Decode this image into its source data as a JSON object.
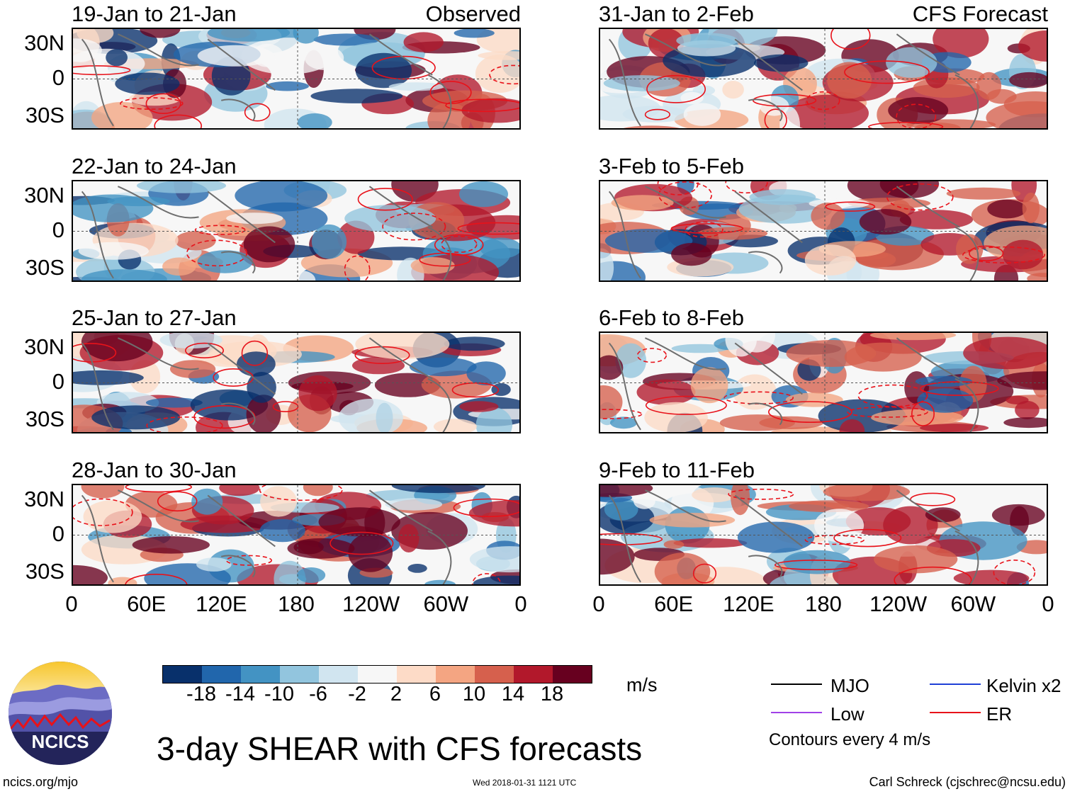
{
  "title": "3-day SHEAR with CFS forecasts",
  "units": "m/s",
  "site": "ncics.org/mjo",
  "timestamp": "Wed 2018-01-31 1121 UTC",
  "author": "Carl Schreck (cjschrec@ncsu.edu)",
  "logo_text": "NCICS",
  "columns": {
    "left_label": "Observed",
    "right_label": "CFS Forecast"
  },
  "lat_labels": [
    "30N",
    "0",
    "30S"
  ],
  "lon_labels": [
    "0",
    "60E",
    "120E",
    "180",
    "120W",
    "60W",
    "0"
  ],
  "colorbar": {
    "ticks": [
      "-18",
      "-14",
      "-10",
      "-6",
      "-2",
      "2",
      "6",
      "10",
      "14",
      "18"
    ],
    "colors": [
      "#08306b",
      "#2166ac",
      "#4393c3",
      "#92c5de",
      "#d1e5f0",
      "#f7f7f7",
      "#fddbc7",
      "#f4a582",
      "#d6604d",
      "#b2182b",
      "#67001f"
    ]
  },
  "legend": {
    "items": [
      {
        "label": "MJO",
        "color": "#000000"
      },
      {
        "label": "Kelvin x2",
        "color": "#1f3fd6"
      },
      {
        "label": "Low",
        "color": "#a040e8"
      },
      {
        "label": "ER",
        "color": "#e8121a"
      }
    ],
    "contour_note": "Contours every 4 m/s"
  },
  "chart_data": {
    "type": "heatmap",
    "variable": "3-day vertical wind shear anomaly",
    "units": "m/s",
    "levels": [
      -18,
      -14,
      -10,
      -6,
      -2,
      2,
      6,
      10,
      14,
      18
    ],
    "lon_ticks": [
      "0",
      "60E",
      "120E",
      "180",
      "120W",
      "60W",
      "0"
    ],
    "lat_ticks": [
      "30N",
      "0",
      "30S"
    ],
    "contour_interval": "4 m/s",
    "panels": [
      {
        "period": "19-Jan to 21-Jan",
        "source": "Observed"
      },
      {
        "period": "22-Jan to 24-Jan",
        "source": "Observed"
      },
      {
        "period": "25-Jan to 27-Jan",
        "source": "Observed"
      },
      {
        "period": "28-Jan to 30-Jan",
        "source": "Observed"
      },
      {
        "period": "31-Jan to 2-Feb",
        "source": "CFS Forecast"
      },
      {
        "period": "3-Feb to 5-Feb",
        "source": "CFS Forecast"
      },
      {
        "period": "6-Feb to 8-Feb",
        "source": "CFS Forecast"
      },
      {
        "period": "9-Feb to 11-Feb",
        "source": "CFS Forecast"
      }
    ]
  }
}
